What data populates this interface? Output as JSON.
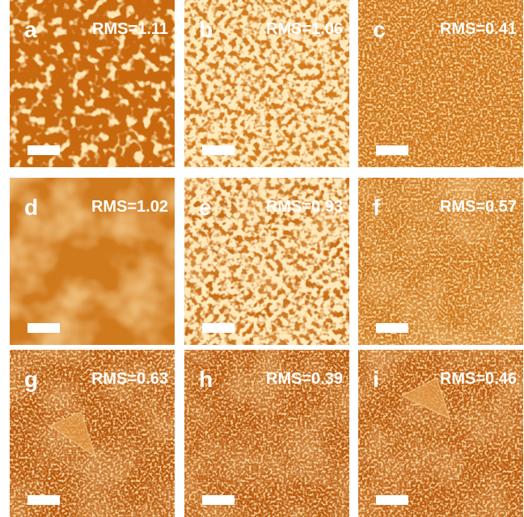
{
  "panels": [
    {
      "label": "a",
      "rms": "RMS=1.11"
    },
    {
      "label": "b",
      "rms": "RMS=1.06"
    },
    {
      "label": "c",
      "rms": "RMS=0.41"
    },
    {
      "label": "d",
      "rms": "RMS=1.02"
    },
    {
      "label": "e",
      "rms": "RMS=0.93"
    },
    {
      "label": "f",
      "rms": "RMS=0.57"
    },
    {
      "label": "g",
      "rms": "RMS=0.63"
    },
    {
      "label": "h",
      "rms": "RMS=0.39"
    },
    {
      "label": "i",
      "rms": "RMS=0.46"
    }
  ]
}
